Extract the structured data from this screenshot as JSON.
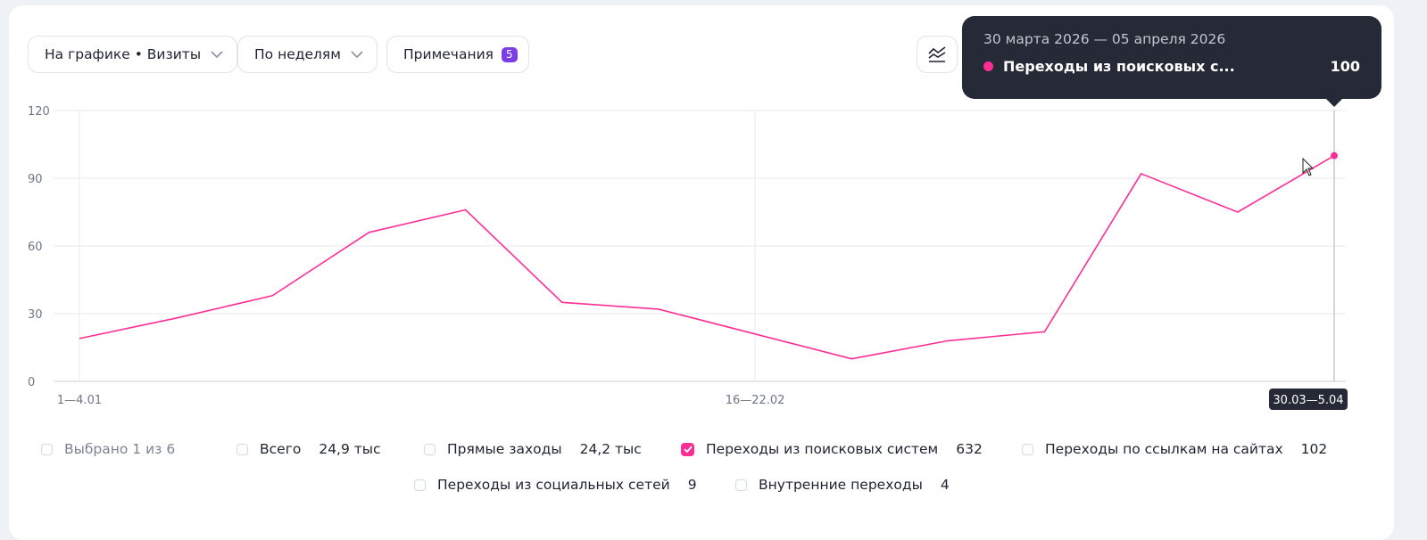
{
  "toolbar": {
    "chart_select_label": "На графике • Визиты",
    "period_select_label": "По неделям",
    "notes_label": "Примечания",
    "notes_count": "5",
    "chart_type_icon": "line-chart-icon"
  },
  "tooltip": {
    "date_range": "30 марта 2026 — 05 апреля 2026",
    "series_name": "Переходы из поисковых с...",
    "value": "100",
    "color": "#ff2e95"
  },
  "chart_data": {
    "type": "line",
    "y_ticks": [
      0,
      30,
      60,
      90,
      120
    ],
    "ylim": [
      0,
      120
    ],
    "x_tick_labels": [
      "1—4.01",
      "16—22.02",
      "30.03—5.04"
    ],
    "grid": true,
    "series": [
      {
        "name": "Переходы из поисковых систем",
        "color": "#ff2e95",
        "values": [
          19,
          28,
          38,
          66,
          76,
          35,
          32,
          21,
          10,
          18,
          22,
          92,
          75,
          100
        ]
      }
    ]
  },
  "legend": {
    "selected_summary": "Выбрано 1 из 6",
    "items": [
      {
        "label": "Всего",
        "value": "24,9 тыс",
        "checked": false
      },
      {
        "label": "Прямые заходы",
        "value": "24,2 тыс",
        "checked": false
      },
      {
        "label": "Переходы из поисковых систем",
        "value": "632",
        "checked": true
      },
      {
        "label": "Переходы по ссылкам на сайтах",
        "value": "102",
        "checked": false
      },
      {
        "label": "Переходы из социальных сетей",
        "value": "9",
        "checked": false
      },
      {
        "label": "Внутренние переходы",
        "value": "4",
        "checked": false
      }
    ]
  }
}
